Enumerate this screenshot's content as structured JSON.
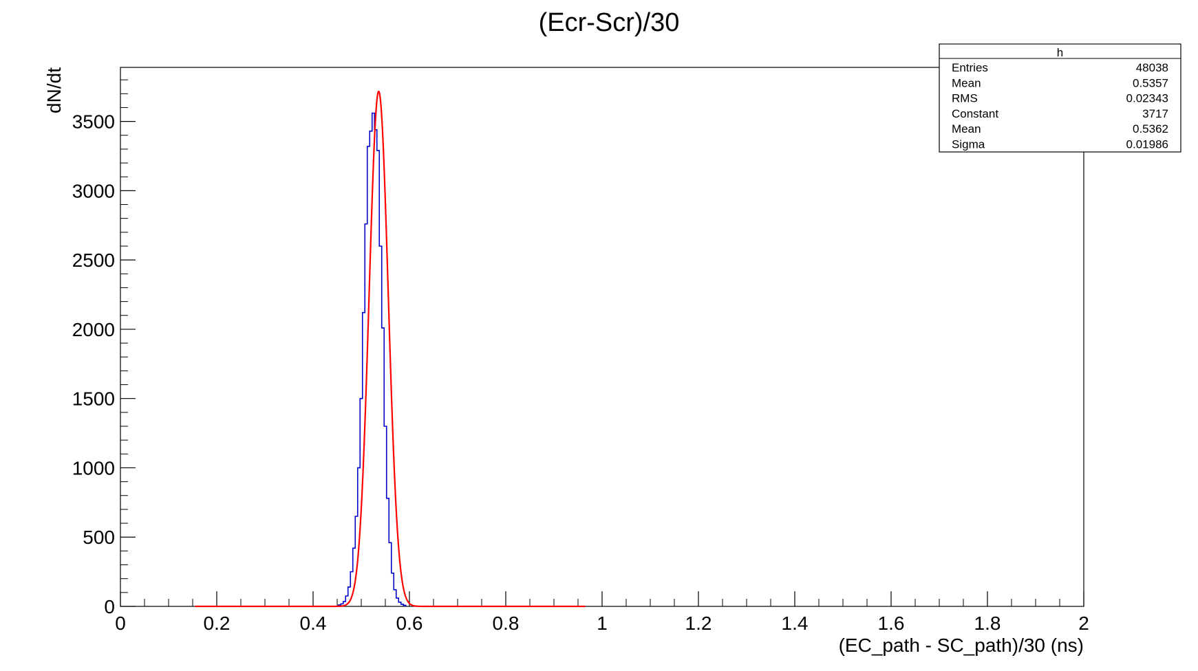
{
  "chart_data": {
    "type": "histogram",
    "title": "(Ecr-Scr)/30",
    "xlabel": "(EC_path - SC_path)/30 (ns)",
    "ylabel": "dN/dt",
    "xlim": [
      0,
      2
    ],
    "ylim": [
      0,
      3890
    ],
    "x_ticks": [
      "0",
      "0.2",
      "0.4",
      "0.6",
      "0.8",
      "1",
      "1.2",
      "1.4",
      "1.6",
      "1.8",
      "2"
    ],
    "y_ticks": [
      "0",
      "500",
      "1000",
      "1500",
      "2000",
      "2500",
      "3000",
      "3500"
    ],
    "grid": false,
    "histogram": {
      "name": "h",
      "color": "#0000cc",
      "bin_width": 0.005,
      "bins": [
        {
          "x": 0.455,
          "y": 10
        },
        {
          "x": 0.46,
          "y": 18
        },
        {
          "x": 0.465,
          "y": 35
        },
        {
          "x": 0.47,
          "y": 75
        },
        {
          "x": 0.475,
          "y": 140
        },
        {
          "x": 0.48,
          "y": 250
        },
        {
          "x": 0.485,
          "y": 420
        },
        {
          "x": 0.49,
          "y": 650
        },
        {
          "x": 0.495,
          "y": 1000
        },
        {
          "x": 0.5,
          "y": 1500
        },
        {
          "x": 0.505,
          "y": 2120
        },
        {
          "x": 0.51,
          "y": 2760
        },
        {
          "x": 0.515,
          "y": 3320
        },
        {
          "x": 0.52,
          "y": 3430
        },
        {
          "x": 0.525,
          "y": 3560
        },
        {
          "x": 0.53,
          "y": 3440
        },
        {
          "x": 0.535,
          "y": 3290
        },
        {
          "x": 0.54,
          "y": 2600
        },
        {
          "x": 0.545,
          "y": 2010
        },
        {
          "x": 0.55,
          "y": 1300
        },
        {
          "x": 0.555,
          "y": 780
        },
        {
          "x": 0.56,
          "y": 460
        },
        {
          "x": 0.565,
          "y": 240
        },
        {
          "x": 0.57,
          "y": 120
        },
        {
          "x": 0.575,
          "y": 60
        },
        {
          "x": 0.58,
          "y": 30
        },
        {
          "x": 0.585,
          "y": 15
        },
        {
          "x": 0.59,
          "y": 8
        }
      ]
    },
    "fit": {
      "type": "gaussian",
      "color": "#ff0000",
      "constant": 3717,
      "mean": 0.5362,
      "sigma": 0.01986,
      "x_range": [
        0.155,
        0.965
      ]
    },
    "stats_box": {
      "title": "h",
      "placement": "top-right",
      "rows": [
        {
          "label": "Entries",
          "value": "48038"
        },
        {
          "label": "Mean",
          "value": "0.5357"
        },
        {
          "label": "RMS",
          "value": "0.02343"
        },
        {
          "label": "Constant",
          "value": "3717"
        },
        {
          "label": "Mean",
          "value": "0.5362"
        },
        {
          "label": "Sigma",
          "value": "0.01986"
        }
      ]
    }
  }
}
